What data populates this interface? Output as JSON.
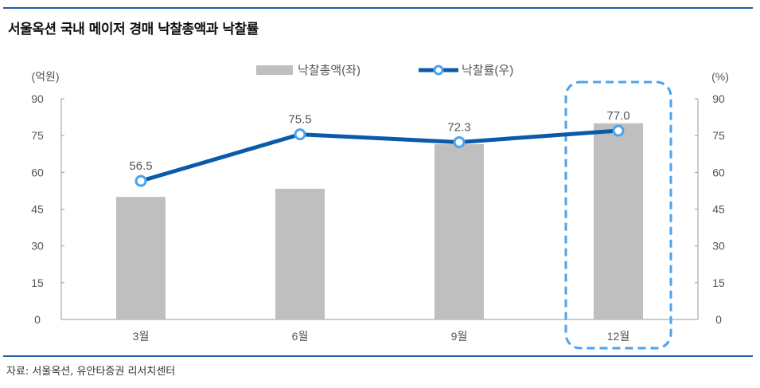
{
  "title": "서울옥션 국내 메이저 경매 낙찰총액과 낙찰률",
  "source": "자료: 서울옥션, 유안타증권 리서치센터",
  "chart_data": {
    "type": "bar+line",
    "categories": [
      "3월",
      "6월",
      "9월",
      "12월"
    ],
    "series": [
      {
        "name": "낙찰총액(좌)",
        "type": "bar",
        "axis": "left",
        "color": "#bfbfbf",
        "values": [
          50,
          53.3,
          71.5,
          80
        ]
      },
      {
        "name": "낙찰률(우)",
        "type": "line",
        "axis": "right",
        "color": "#0a5aa8",
        "values": [
          56.5,
          75.5,
          72.3,
          77.0
        ],
        "labels": [
          "56.5",
          "75.5",
          "72.3",
          "77.0"
        ]
      }
    ],
    "left_axis": {
      "label": "(억원)",
      "ylim": [
        0,
        90
      ],
      "ticks": [
        "0",
        "15",
        "30",
        "45",
        "60",
        "75",
        "90"
      ]
    },
    "right_axis": {
      "label": "(%)",
      "ylim": [
        0,
        90
      ],
      "ticks": [
        "0",
        "15",
        "30",
        "45",
        "60",
        "75",
        "90"
      ]
    },
    "highlight_category": "12월",
    "highlight_color": "#4aa3f0",
    "legend_position": "top-center",
    "grid": false
  }
}
